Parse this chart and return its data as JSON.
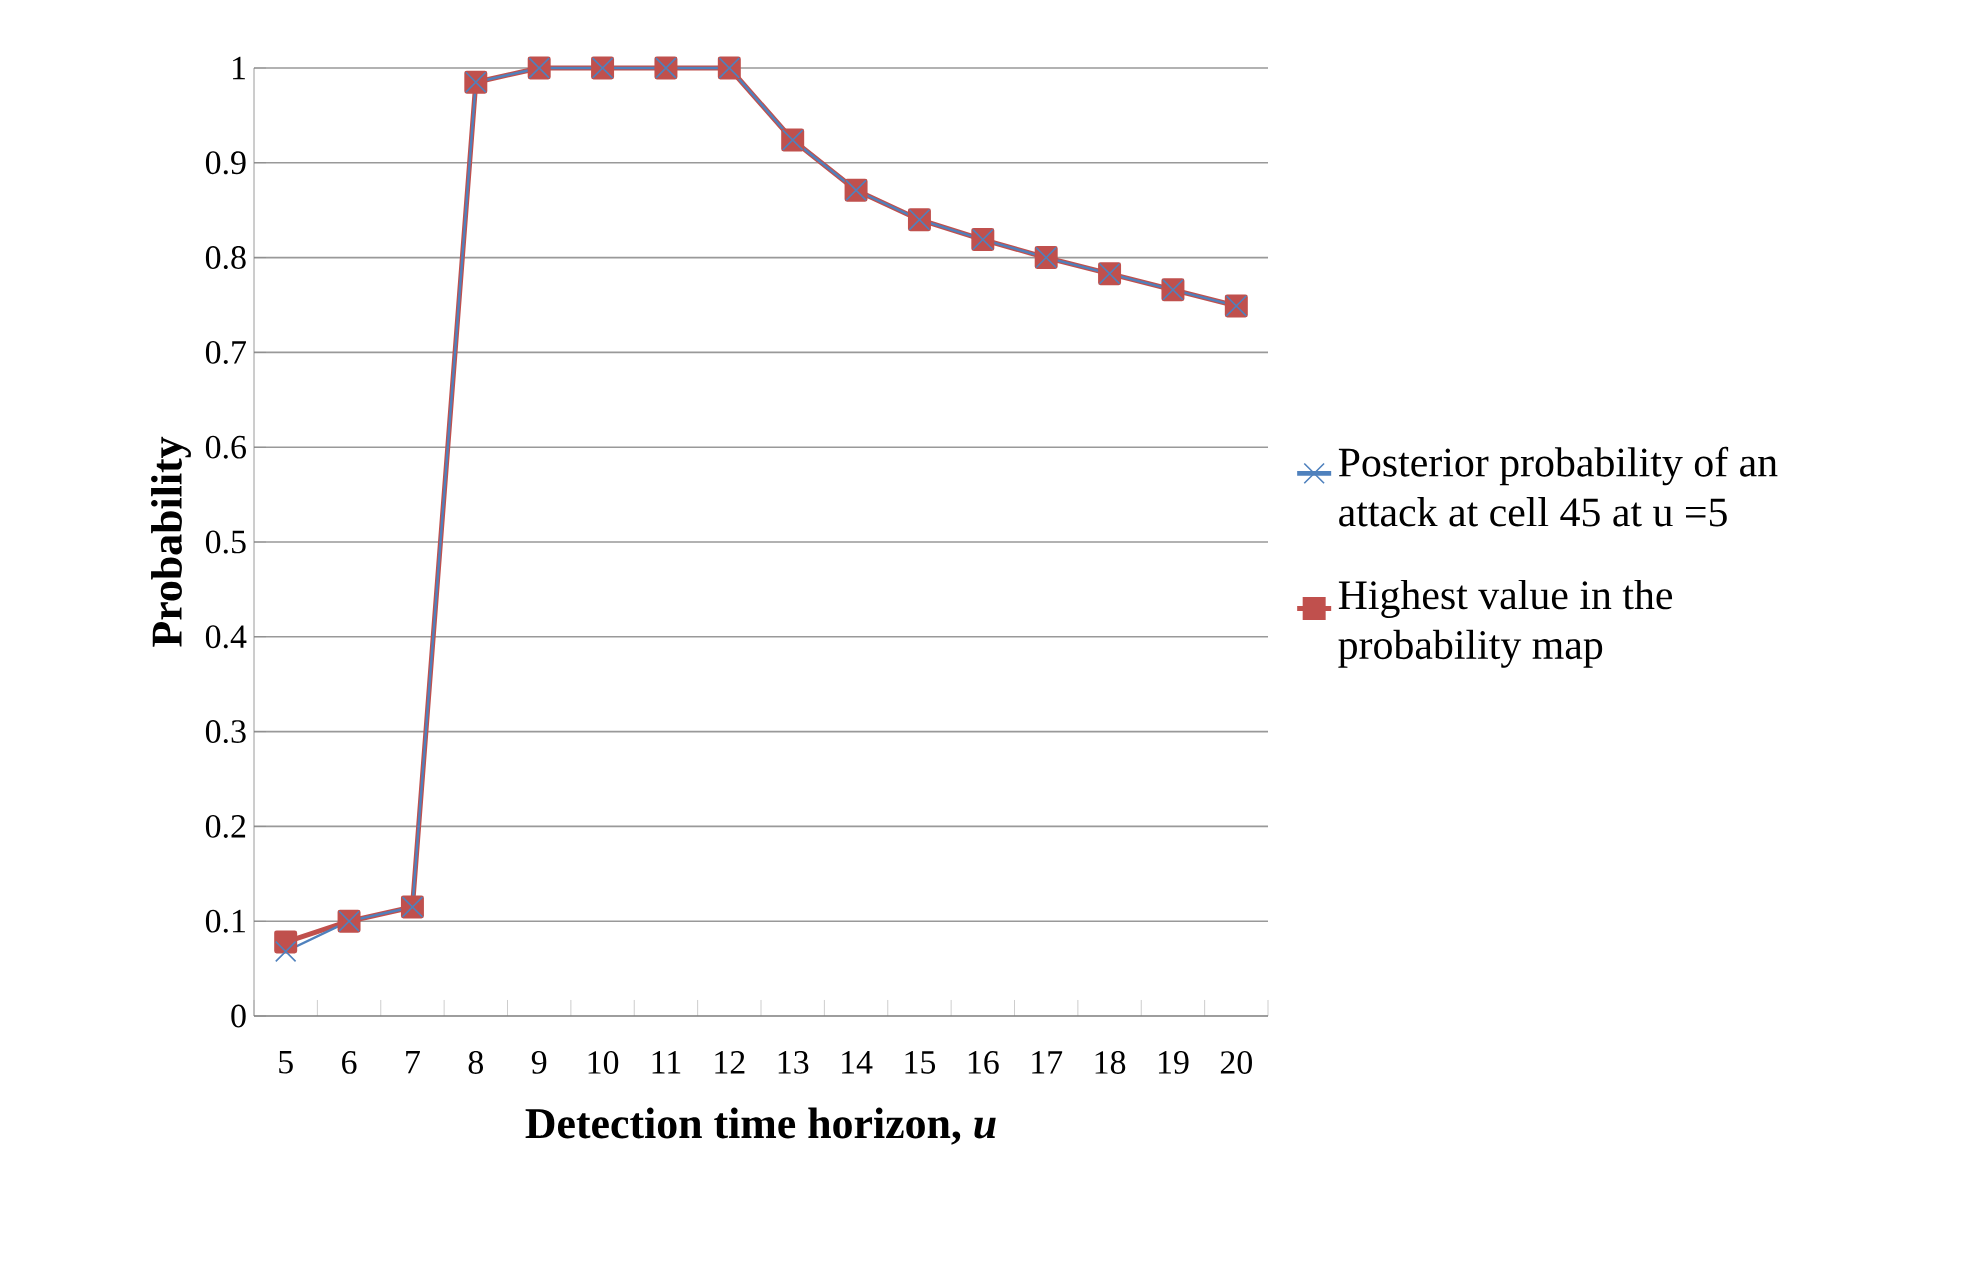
{
  "chart_data": {
    "type": "line",
    "xlabel": "Detection time horizon, *u*",
    "ylabel": "Probability",
    "categories": [
      "5",
      "6",
      "7",
      "8",
      "9",
      "10",
      "11",
      "12",
      "13",
      "14",
      "15",
      "16",
      "17",
      "18",
      "19",
      "20"
    ],
    "series": [
      {
        "name": "Posterior probability of an attack at cell 45 at u =5",
        "color": "#4f81bd",
        "marker": "cross",
        "values": [
          0.068,
          0.1,
          0.115,
          0.985,
          1,
          1,
          1,
          1,
          0.924,
          0.871,
          0.84,
          0.819,
          0.8,
          0.783,
          0.766,
          0.749
        ]
      },
      {
        "name": "Highest value in the probability map",
        "color": "#c0504d",
        "marker": "square",
        "values": [
          0.078,
          0.1,
          0.115,
          0.985,
          1,
          1,
          1,
          1,
          0.924,
          0.871,
          0.84,
          0.819,
          0.8,
          0.783,
          0.766,
          0.749
        ]
      }
    ],
    "ylim": [
      0,
      1
    ],
    "yticks": [
      0,
      0.1,
      0.2,
      0.3,
      0.4,
      0.5,
      0.6,
      0.7,
      0.8,
      0.9,
      1
    ],
    "grid": "y",
    "legend": "right"
  }
}
